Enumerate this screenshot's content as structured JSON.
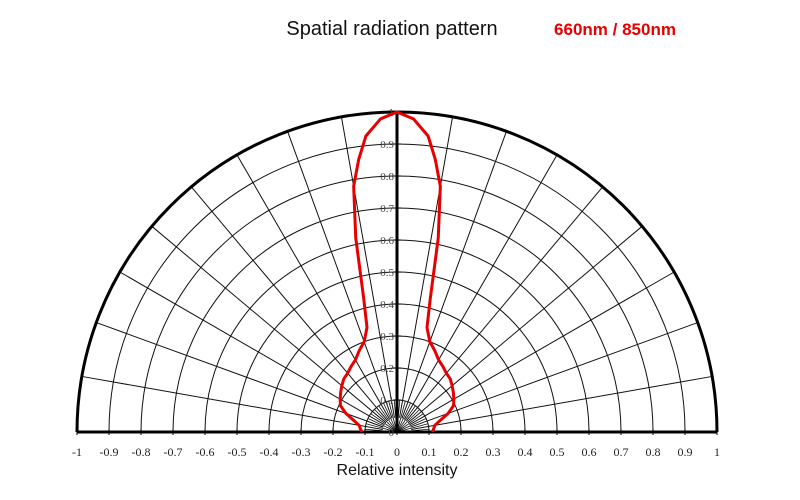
{
  "chart_data": {
    "type": "polar",
    "title": "Spatial radiation pattern",
    "subtitle": "660nm / 850nm",
    "xlabel": "Relative intensity",
    "xlim": [
      -1,
      1
    ],
    "rlim": [
      0,
      1
    ],
    "x_ticks": [
      "-1",
      "-0.9",
      "-0.8",
      "-0.7",
      "-0.6",
      "-0.5",
      "-0.4",
      "-0.3",
      "-0.2",
      "-0.1",
      "0",
      "0.1",
      "0.2",
      "0.3",
      "0.4",
      "0.5",
      "0.6",
      "0.7",
      "0.8",
      "0.9",
      "1"
    ],
    "r_ticks": [
      "0",
      "0.1",
      "0.2",
      "0.3",
      "0.4",
      "0.5",
      "0.6",
      "0.7",
      "0.8",
      "0.9",
      "1"
    ],
    "grid": true,
    "angle_range_deg": [
      -90,
      90
    ],
    "series": [
      {
        "color": "#e60000",
        "points": [
          {
            "angle": 0,
            "r": 1.0
          },
          {
            "angle": 3,
            "r": 0.98
          },
          {
            "angle": 6,
            "r": 0.93
          },
          {
            "angle": 8,
            "r": 0.86
          },
          {
            "angle": 10,
            "r": 0.78
          },
          {
            "angle": 12,
            "r": 0.62
          },
          {
            "angle": 14,
            "r": 0.43
          },
          {
            "angle": 16,
            "r": 0.34
          },
          {
            "angle": 20,
            "r": 0.3
          },
          {
            "angle": 25,
            "r": 0.28
          },
          {
            "angle": 30,
            "r": 0.26
          },
          {
            "angle": 35,
            "r": 0.25
          },
          {
            "angle": 40,
            "r": 0.24
          },
          {
            "angle": 45,
            "r": 0.235
          },
          {
            "angle": 50,
            "r": 0.225
          },
          {
            "angle": 55,
            "r": 0.215
          },
          {
            "angle": 60,
            "r": 0.205
          },
          {
            "angle": 65,
            "r": 0.195
          },
          {
            "angle": 70,
            "r": 0.17
          },
          {
            "angle": 75,
            "r": 0.14
          },
          {
            "angle": 80,
            "r": 0.12
          },
          {
            "angle": 85,
            "r": 0.115
          },
          {
            "angle": 90,
            "r": 0.11
          }
        ],
        "symmetric": true
      }
    ]
  }
}
